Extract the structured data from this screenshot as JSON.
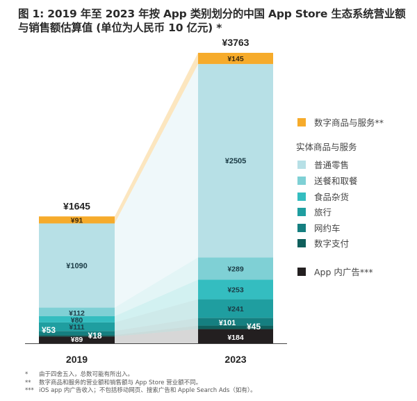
{
  "title": "图 1: 2019 年至 2023 年按 App 类别划分的中国 App Store 生态系统营业额与销售额估算值 (单位为人民币 10 亿元) *",
  "chart_data": {
    "type": "bar",
    "stacked": true,
    "title": "图 1: 2019 年至 2023 年按 App 类别划分的中国 App Store 生态系统营业额与销售额估算值 (单位为人民币 10 亿元) *",
    "xlabel": "",
    "ylabel": "",
    "categories": [
      "2019",
      "2023"
    ],
    "totals": [
      1645,
      3763
    ],
    "total_labels": [
      "¥1645",
      "¥3763"
    ],
    "series": [
      {
        "key": "ads",
        "name": "App 内广告***",
        "color": "#231f20",
        "values": [
          89,
          184
        ],
        "labels": [
          "¥89",
          "¥184"
        ],
        "label_color": "#ffffff"
      },
      {
        "key": "payments",
        "name": "数字支付",
        "color": "#0f5f5c",
        "values": [
          18,
          45
        ],
        "labels": [
          "¥18",
          "¥45"
        ],
        "label_color": "#ffffff"
      },
      {
        "key": "ridehailing",
        "name": "网约车",
        "color": "#157f80",
        "values": [
          53,
          101
        ],
        "labels": [
          "¥53",
          "¥101"
        ],
        "label_color": "#ffffff"
      },
      {
        "key": "travel",
        "name": "旅行",
        "color": "#1f9ea0",
        "values": [
          111,
          241
        ],
        "labels": [
          "¥111",
          "¥241"
        ],
        "label_color": "#1b3b45"
      },
      {
        "key": "grocery",
        "name": "食品杂货",
        "color": "#34bdc0",
        "values": [
          80,
          253
        ],
        "labels": [
          "¥80",
          "¥253"
        ],
        "label_color": "#1b3b45"
      },
      {
        "key": "delivery",
        "name": "送餐和取餐",
        "color": "#7fd0d5",
        "values": [
          112,
          289
        ],
        "labels": [
          "¥112",
          "¥289"
        ],
        "label_color": "#1b3b45"
      },
      {
        "key": "retail",
        "name": "普通零售",
        "color": "#b7e0e6",
        "values": [
          1090,
          2505
        ],
        "labels": [
          "¥1090",
          "¥2505"
        ],
        "label_color": "#1b3b45"
      },
      {
        "key": "digital",
        "name": "数字商品与服务**",
        "color": "#f6ab2b",
        "values": [
          91,
          145
        ],
        "labels": [
          "¥91",
          "¥145"
        ],
        "label_color": "#3a2a10"
      }
    ],
    "legend_placement": "right",
    "legend": {
      "digital": "数字商品与服务**",
      "physical_header": "实体商品与服务",
      "physical_items": [
        "普通零售",
        "送餐和取餐",
        "食品杂货",
        "旅行",
        "网约车",
        "数字支付"
      ],
      "ads": "App 内广告***"
    },
    "grid": false
  },
  "legend": {
    "digital": {
      "label": "数字商品与服务**",
      "color": "#f6ab2b"
    },
    "physical_header": "实体商品与服务",
    "physical_items": [
      {
        "label": "普通零售",
        "color": "#b7e0e6"
      },
      {
        "label": "送餐和取餐",
        "color": "#7fd0d5"
      },
      {
        "label": "食品杂货",
        "color": "#34bdc0"
      },
      {
        "label": "旅行",
        "color": "#1f9ea0"
      },
      {
        "label": "网约车",
        "color": "#157f80"
      },
      {
        "label": "数字支付",
        "color": "#0f5f5c"
      }
    ],
    "ads": {
      "label": "App 内广告***",
      "color": "#231f20"
    }
  },
  "footnotes": [
    {
      "mark": "*",
      "text": "由于四舍五入，总数可能有所出入。"
    },
    {
      "mark": "**",
      "text": "数字商品和服务的营业额和销售额与 App Store 营业额不同。"
    },
    {
      "mark": "***",
      "text": "iOS app 内广告收入；不包括移动网页、搜索广告和 Apple Search Ads（如有）。"
    }
  ]
}
